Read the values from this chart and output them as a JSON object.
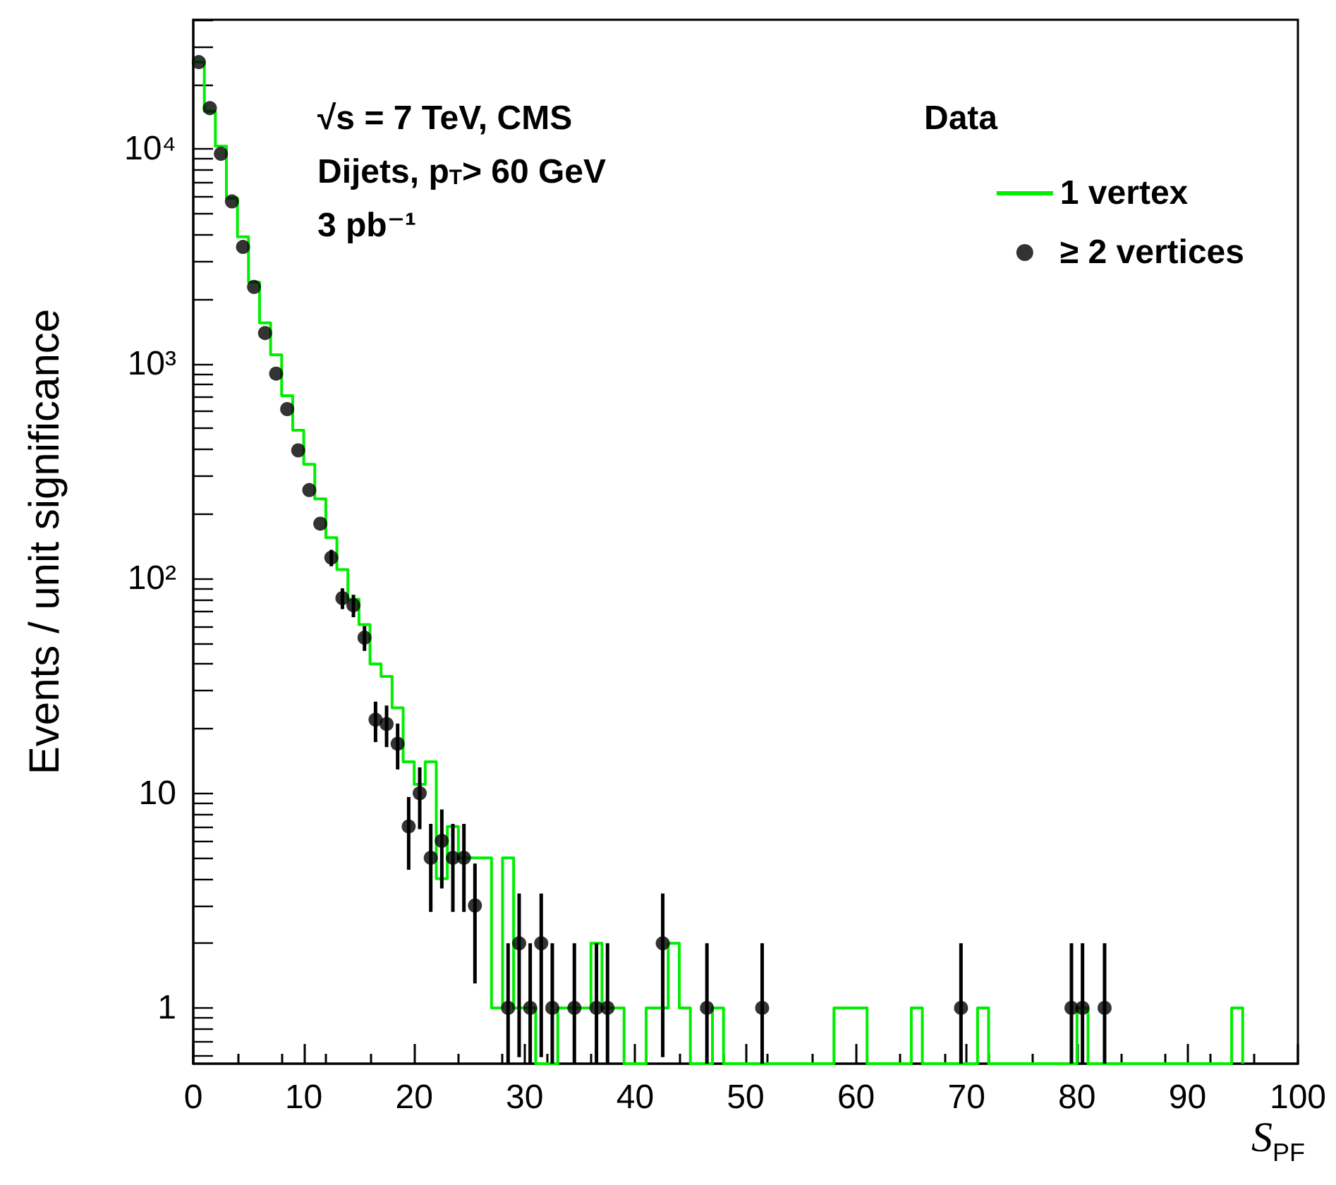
{
  "chart_data": {
    "type": "histogram",
    "xlabel": "S$_{PF}$",
    "ylabel": "Events / unit significance",
    "legend_title": "Data",
    "annotations": [
      "√s = 7 TeV, CMS",
      "Dijets, p$_{T}$> 60 GeV",
      "3 pb⁻¹"
    ],
    "bins": [
      0,
      1,
      2,
      3,
      4,
      5,
      6,
      7,
      8,
      9,
      10,
      11,
      12,
      13,
      14,
      15,
      16,
      17,
      18,
      19,
      20,
      21,
      22,
      23,
      24,
      25,
      26,
      27,
      28,
      29,
      30,
      31,
      32,
      33,
      34,
      35,
      36,
      37,
      38,
      39,
      40,
      41,
      42,
      43,
      44,
      45,
      46,
      47,
      48,
      49,
      50,
      51,
      52,
      53,
      54,
      55,
      56,
      57,
      58,
      59,
      60,
      61,
      62,
      63,
      64,
      65,
      66,
      67,
      68,
      69,
      70,
      71,
      72,
      73,
      74,
      75,
      76,
      77,
      78,
      79,
      80,
      81,
      82,
      83,
      84,
      85,
      86,
      87,
      88,
      89,
      90,
      91,
      92,
      93,
      94,
      95
    ],
    "series": [
      {
        "name": "1 vertex",
        "type": "histogram",
        "color": "#00ee00",
        "values": [
          25400,
          15000,
          10300,
          5900,
          3900,
          2400,
          1550,
          1100,
          710,
          490,
          340,
          235,
          155,
          110,
          80,
          61,
          40,
          35,
          25,
          14,
          11,
          14,
          4,
          7,
          5,
          5,
          5,
          1,
          5,
          1,
          1,
          null,
          null,
          1,
          1,
          1,
          2,
          1,
          1,
          null,
          null,
          1,
          1,
          2,
          1,
          null,
          null,
          1,
          null,
          null,
          null,
          null,
          null,
          null,
          null,
          null,
          null,
          null,
          1,
          1,
          1,
          null,
          null,
          null,
          null,
          1,
          null,
          null,
          null,
          null,
          null,
          1,
          null,
          null,
          null,
          null,
          null,
          null,
          null,
          null,
          1,
          null,
          null,
          null,
          null,
          null,
          null,
          null,
          null,
          null,
          null,
          null,
          null,
          null,
          1
        ]
      },
      {
        "name": "≥ 2 vertices",
        "type": "scatter",
        "color": "#000000",
        "marker": "circle",
        "x": [
          0.5,
          1.5,
          2.5,
          3.5,
          4.5,
          5.5,
          6.5,
          7.5,
          8.5,
          9.5,
          10.5,
          11.5,
          12.5,
          13.5,
          14.5,
          15.5,
          16.5,
          17.5,
          18.5,
          19.5,
          20.5,
          21.5,
          22.5,
          23.5,
          24.5,
          25.5,
          28.5,
          29.5,
          30.5,
          31.5,
          32.5,
          34.5,
          36.5,
          37.5,
          42.5,
          46.5,
          51.5,
          69.5,
          79.5,
          80.5,
          82.5
        ],
        "values": [
          25400,
          15500,
          9500,
          5700,
          3500,
          2280,
          1390,
          900,
          615,
          395,
          258,
          180,
          125,
          81,
          75,
          53,
          22,
          21,
          17,
          7,
          10,
          5,
          6,
          5,
          5,
          3,
          1,
          2,
          1,
          2,
          1,
          1,
          1,
          1,
          2,
          1,
          1,
          1,
          1,
          1,
          1
        ],
        "errors": [
          null,
          null,
          null,
          null,
          null,
          null,
          null,
          null,
          null,
          null,
          null,
          null,
          [
            114,
            136
          ],
          [
            72,
            90
          ],
          [
            66,
            84
          ],
          [
            46,
            60
          ],
          [
            17.3,
            26.7
          ],
          [
            16.4,
            25.6
          ],
          [
            12.9,
            21.1
          ],
          [
            4.4,
            9.6
          ],
          [
            6.8,
            13.2
          ],
          [
            2.8,
            7.2
          ],
          [
            3.6,
            8.4
          ],
          [
            2.8,
            7.2
          ],
          [
            2.8,
            7.2
          ],
          [
            1.3,
            4.7
          ],
          [
            0.55,
            2
          ],
          [
            0.59,
            3.41
          ],
          [
            0.55,
            2
          ],
          [
            0.59,
            3.41
          ],
          [
            0.55,
            2
          ],
          [
            0.55,
            2
          ],
          [
            0.55,
            2
          ],
          [
            0.55,
            2
          ],
          [
            0.59,
            3.41
          ],
          [
            0.55,
            2
          ],
          [
            0.55,
            2
          ],
          [
            0.55,
            2
          ],
          [
            0.55,
            2
          ],
          [
            0.55,
            2
          ],
          [
            0.55,
            2
          ]
        ]
      }
    ],
    "xlim": [
      0,
      100
    ],
    "xticks": [
      0,
      10,
      20,
      30,
      40,
      50,
      60,
      70,
      80,
      90,
      100
    ],
    "ylim": [
      0.55,
      40000
    ],
    "yticks": [
      1,
      10,
      {
        "value": 100,
        "label": "10²"
      },
      {
        "value": 1000,
        "label": "10³"
      },
      {
        "value": 10000,
        "label": "10⁴"
      }
    ],
    "log": "y",
    "grid": false,
    "legend": "top right"
  }
}
